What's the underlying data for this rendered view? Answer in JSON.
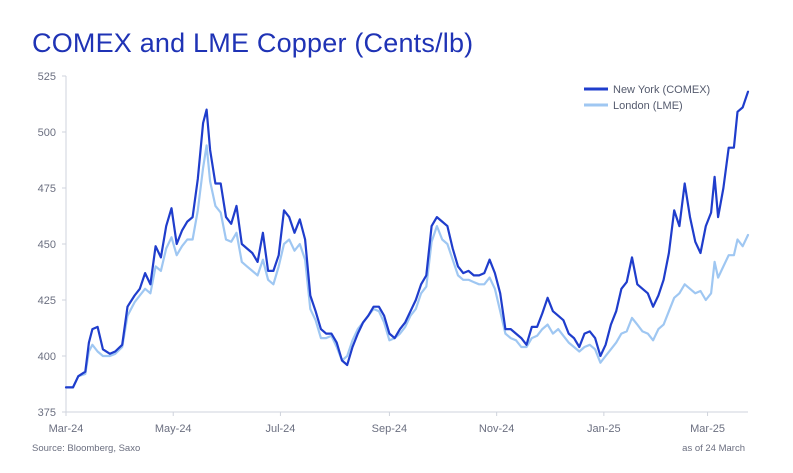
{
  "title": "COMEX and LME Copper (Cents/lb)",
  "source": "Source: Bloomberg, Saxo",
  "as_of": "as of 24 March",
  "colors": {
    "comex": "#1f3dcc",
    "lme": "#9fc7f2",
    "axis": "#cfd3dc",
    "text": "#6b6f80"
  },
  "chart_data": {
    "type": "line",
    "title": "COMEX and LME Copper (Cents/lb)",
    "ylim": [
      375,
      525
    ],
    "yticks": [
      375,
      400,
      425,
      450,
      475,
      500,
      525
    ],
    "xlim": [
      "2024-03-01",
      "2025-03-24"
    ],
    "xticks": [
      {
        "date": "2024-03-01",
        "label": "Mar-24"
      },
      {
        "date": "2024-05-01",
        "label": "May-24"
      },
      {
        "date": "2024-07-01",
        "label": "Jul-24"
      },
      {
        "date": "2024-09-01",
        "label": "Sep-24"
      },
      {
        "date": "2024-11-01",
        "label": "Nov-24"
      },
      {
        "date": "2025-01-01",
        "label": "Jan-25"
      },
      {
        "date": "2025-03-01",
        "label": "Mar-25"
      }
    ],
    "legend_position": "top-right",
    "grid": false,
    "series": [
      {
        "name": "New York (COMEX)",
        "color": "#1f3dcc",
        "points": [
          [
            "2024-03-01",
            386
          ],
          [
            "2024-03-05",
            386
          ],
          [
            "2024-03-08",
            391
          ],
          [
            "2024-03-12",
            393
          ],
          [
            "2024-03-14",
            406
          ],
          [
            "2024-03-16",
            412
          ],
          [
            "2024-03-19",
            413
          ],
          [
            "2024-03-22",
            403
          ],
          [
            "2024-03-26",
            401
          ],
          [
            "2024-03-29",
            402
          ],
          [
            "2024-04-02",
            405
          ],
          [
            "2024-04-05",
            422
          ],
          [
            "2024-04-09",
            427
          ],
          [
            "2024-04-12",
            430
          ],
          [
            "2024-04-15",
            437
          ],
          [
            "2024-04-18",
            432
          ],
          [
            "2024-04-21",
            449
          ],
          [
            "2024-04-24",
            444
          ],
          [
            "2024-04-27",
            458
          ],
          [
            "2024-04-30",
            466
          ],
          [
            "2024-05-03",
            450
          ],
          [
            "2024-05-06",
            456
          ],
          [
            "2024-05-09",
            460
          ],
          [
            "2024-05-12",
            462
          ],
          [
            "2024-05-15",
            479
          ],
          [
            "2024-05-18",
            504
          ],
          [
            "2024-05-20",
            510
          ],
          [
            "2024-05-22",
            492
          ],
          [
            "2024-05-25",
            477
          ],
          [
            "2024-05-28",
            477
          ],
          [
            "2024-05-31",
            462
          ],
          [
            "2024-06-03",
            459
          ],
          [
            "2024-06-06",
            467
          ],
          [
            "2024-06-09",
            450
          ],
          [
            "2024-06-12",
            448
          ],
          [
            "2024-06-15",
            446
          ],
          [
            "2024-06-18",
            442
          ],
          [
            "2024-06-21",
            455
          ],
          [
            "2024-06-24",
            438
          ],
          [
            "2024-06-27",
            438
          ],
          [
            "2024-06-30",
            445
          ],
          [
            "2024-07-03",
            465
          ],
          [
            "2024-07-06",
            462
          ],
          [
            "2024-07-09",
            455
          ],
          [
            "2024-07-12",
            461
          ],
          [
            "2024-07-15",
            452
          ],
          [
            "2024-07-18",
            427
          ],
          [
            "2024-07-21",
            420
          ],
          [
            "2024-07-24",
            412
          ],
          [
            "2024-07-27",
            410
          ],
          [
            "2024-07-30",
            410
          ],
          [
            "2024-08-02",
            406
          ],
          [
            "2024-08-05",
            398
          ],
          [
            "2024-08-08",
            396
          ],
          [
            "2024-08-11",
            404
          ],
          [
            "2024-08-14",
            410
          ],
          [
            "2024-08-17",
            415
          ],
          [
            "2024-08-20",
            418
          ],
          [
            "2024-08-23",
            422
          ],
          [
            "2024-08-26",
            422
          ],
          [
            "2024-08-29",
            418
          ],
          [
            "2024-09-01",
            410
          ],
          [
            "2024-09-04",
            408
          ],
          [
            "2024-09-07",
            412
          ],
          [
            "2024-09-10",
            415
          ],
          [
            "2024-09-13",
            420
          ],
          [
            "2024-09-16",
            425
          ],
          [
            "2024-09-19",
            432
          ],
          [
            "2024-09-22",
            436
          ],
          [
            "2024-09-25",
            458
          ],
          [
            "2024-09-28",
            462
          ],
          [
            "2024-10-01",
            460
          ],
          [
            "2024-10-04",
            458
          ],
          [
            "2024-10-07",
            448
          ],
          [
            "2024-10-10",
            440
          ],
          [
            "2024-10-13",
            437
          ],
          [
            "2024-10-16",
            438
          ],
          [
            "2024-10-19",
            436
          ],
          [
            "2024-10-22",
            436
          ],
          [
            "2024-10-25",
            437
          ],
          [
            "2024-10-28",
            443
          ],
          [
            "2024-10-31",
            437
          ],
          [
            "2024-11-03",
            428
          ],
          [
            "2024-11-06",
            412
          ],
          [
            "2024-11-09",
            412
          ],
          [
            "2024-11-12",
            410
          ],
          [
            "2024-11-15",
            408
          ],
          [
            "2024-11-18",
            405
          ],
          [
            "2024-11-21",
            413
          ],
          [
            "2024-11-24",
            413
          ],
          [
            "2024-11-27",
            419
          ],
          [
            "2024-11-30",
            426
          ],
          [
            "2024-12-03",
            420
          ],
          [
            "2024-12-06",
            418
          ],
          [
            "2024-12-09",
            416
          ],
          [
            "2024-12-12",
            410
          ],
          [
            "2024-12-15",
            408
          ],
          [
            "2024-12-18",
            404
          ],
          [
            "2024-12-21",
            410
          ],
          [
            "2024-12-24",
            411
          ],
          [
            "2024-12-27",
            408
          ],
          [
            "2024-12-30",
            400
          ],
          [
            "2025-01-02",
            405
          ],
          [
            "2025-01-05",
            414
          ],
          [
            "2025-01-08",
            420
          ],
          [
            "2025-01-11",
            430
          ],
          [
            "2025-01-14",
            433
          ],
          [
            "2025-01-17",
            444
          ],
          [
            "2025-01-20",
            432
          ],
          [
            "2025-01-23",
            430
          ],
          [
            "2025-01-26",
            428
          ],
          [
            "2025-01-29",
            422
          ],
          [
            "2025-02-01",
            427
          ],
          [
            "2025-02-04",
            434
          ],
          [
            "2025-02-07",
            446
          ],
          [
            "2025-02-10",
            465
          ],
          [
            "2025-02-13",
            458
          ],
          [
            "2025-02-16",
            477
          ],
          [
            "2025-02-19",
            462
          ],
          [
            "2025-02-22",
            451
          ],
          [
            "2025-02-25",
            446
          ],
          [
            "2025-02-28",
            458
          ],
          [
            "2025-03-03",
            464
          ],
          [
            "2025-03-05",
            480
          ],
          [
            "2025-03-07",
            462
          ],
          [
            "2025-03-10",
            475
          ],
          [
            "2025-03-13",
            493
          ],
          [
            "2025-03-16",
            493
          ],
          [
            "2025-03-18",
            509
          ],
          [
            "2025-03-21",
            511
          ],
          [
            "2025-03-24",
            518
          ]
        ]
      },
      {
        "name": "London (LME)",
        "color": "#9fc7f2",
        "points": [
          [
            "2024-03-01",
            386
          ],
          [
            "2024-03-05",
            386
          ],
          [
            "2024-03-08",
            391
          ],
          [
            "2024-03-12",
            392
          ],
          [
            "2024-03-14",
            402
          ],
          [
            "2024-03-16",
            405
          ],
          [
            "2024-03-19",
            402
          ],
          [
            "2024-03-22",
            400
          ],
          [
            "2024-03-26",
            400
          ],
          [
            "2024-03-29",
            401
          ],
          [
            "2024-04-02",
            404
          ],
          [
            "2024-04-05",
            418
          ],
          [
            "2024-04-09",
            424
          ],
          [
            "2024-04-12",
            427
          ],
          [
            "2024-04-15",
            430
          ],
          [
            "2024-04-18",
            428
          ],
          [
            "2024-04-21",
            440
          ],
          [
            "2024-04-24",
            438
          ],
          [
            "2024-04-27",
            448
          ],
          [
            "2024-04-30",
            453
          ],
          [
            "2024-05-03",
            445
          ],
          [
            "2024-05-06",
            449
          ],
          [
            "2024-05-09",
            452
          ],
          [
            "2024-05-12",
            452
          ],
          [
            "2024-05-15",
            465
          ],
          [
            "2024-05-18",
            484
          ],
          [
            "2024-05-20",
            494
          ],
          [
            "2024-05-22",
            478
          ],
          [
            "2024-05-25",
            467
          ],
          [
            "2024-05-28",
            464
          ],
          [
            "2024-05-31",
            452
          ],
          [
            "2024-06-03",
            451
          ],
          [
            "2024-06-06",
            455
          ],
          [
            "2024-06-09",
            442
          ],
          [
            "2024-06-12",
            440
          ],
          [
            "2024-06-15",
            438
          ],
          [
            "2024-06-18",
            436
          ],
          [
            "2024-06-21",
            443
          ],
          [
            "2024-06-24",
            434
          ],
          [
            "2024-06-27",
            432
          ],
          [
            "2024-06-30",
            440
          ],
          [
            "2024-07-03",
            450
          ],
          [
            "2024-07-06",
            452
          ],
          [
            "2024-07-09",
            447
          ],
          [
            "2024-07-12",
            450
          ],
          [
            "2024-07-15",
            443
          ],
          [
            "2024-07-18",
            421
          ],
          [
            "2024-07-21",
            416
          ],
          [
            "2024-07-24",
            408
          ],
          [
            "2024-07-27",
            408
          ],
          [
            "2024-07-30",
            409
          ],
          [
            "2024-08-02",
            404
          ],
          [
            "2024-08-05",
            398
          ],
          [
            "2024-08-08",
            400
          ],
          [
            "2024-08-11",
            407
          ],
          [
            "2024-08-14",
            412
          ],
          [
            "2024-08-17",
            415
          ],
          [
            "2024-08-20",
            418
          ],
          [
            "2024-08-23",
            421
          ],
          [
            "2024-08-26",
            420
          ],
          [
            "2024-08-29",
            415
          ],
          [
            "2024-09-01",
            407
          ],
          [
            "2024-09-04",
            408
          ],
          [
            "2024-09-07",
            410
          ],
          [
            "2024-09-10",
            413
          ],
          [
            "2024-09-13",
            418
          ],
          [
            "2024-09-16",
            421
          ],
          [
            "2024-09-19",
            428
          ],
          [
            "2024-09-22",
            431
          ],
          [
            "2024-09-25",
            451
          ],
          [
            "2024-09-28",
            458
          ],
          [
            "2024-10-01",
            452
          ],
          [
            "2024-10-04",
            450
          ],
          [
            "2024-10-07",
            443
          ],
          [
            "2024-10-10",
            436
          ],
          [
            "2024-10-13",
            434
          ],
          [
            "2024-10-16",
            434
          ],
          [
            "2024-10-19",
            433
          ],
          [
            "2024-10-22",
            432
          ],
          [
            "2024-10-25",
            432
          ],
          [
            "2024-10-28",
            435
          ],
          [
            "2024-10-31",
            430
          ],
          [
            "2024-11-03",
            420
          ],
          [
            "2024-11-06",
            410
          ],
          [
            "2024-11-09",
            408
          ],
          [
            "2024-11-12",
            407
          ],
          [
            "2024-11-15",
            404
          ],
          [
            "2024-11-18",
            404
          ],
          [
            "2024-11-21",
            408
          ],
          [
            "2024-11-24",
            409
          ],
          [
            "2024-11-27",
            412
          ],
          [
            "2024-11-30",
            414
          ],
          [
            "2024-12-03",
            410
          ],
          [
            "2024-12-06",
            412
          ],
          [
            "2024-12-09",
            409
          ],
          [
            "2024-12-12",
            406
          ],
          [
            "2024-12-15",
            404
          ],
          [
            "2024-12-18",
            402
          ],
          [
            "2024-12-21",
            404
          ],
          [
            "2024-12-24",
            405
          ],
          [
            "2024-12-27",
            403
          ],
          [
            "2024-12-30",
            397
          ],
          [
            "2025-01-02",
            400
          ],
          [
            "2025-01-05",
            403
          ],
          [
            "2025-01-08",
            406
          ],
          [
            "2025-01-11",
            410
          ],
          [
            "2025-01-14",
            411
          ],
          [
            "2025-01-17",
            417
          ],
          [
            "2025-01-20",
            414
          ],
          [
            "2025-01-23",
            411
          ],
          [
            "2025-01-26",
            410
          ],
          [
            "2025-01-29",
            407
          ],
          [
            "2025-02-01",
            412
          ],
          [
            "2025-02-04",
            414
          ],
          [
            "2025-02-07",
            420
          ],
          [
            "2025-02-10",
            426
          ],
          [
            "2025-02-13",
            428
          ],
          [
            "2025-02-16",
            432
          ],
          [
            "2025-02-19",
            430
          ],
          [
            "2025-02-22",
            428
          ],
          [
            "2025-02-25",
            429
          ],
          [
            "2025-02-28",
            425
          ],
          [
            "2025-03-03",
            428
          ],
          [
            "2025-03-05",
            442
          ],
          [
            "2025-03-07",
            435
          ],
          [
            "2025-03-10",
            440
          ],
          [
            "2025-03-13",
            445
          ],
          [
            "2025-03-16",
            445
          ],
          [
            "2025-03-18",
            452
          ],
          [
            "2025-03-21",
            449
          ],
          [
            "2025-03-24",
            454
          ]
        ]
      }
    ]
  }
}
